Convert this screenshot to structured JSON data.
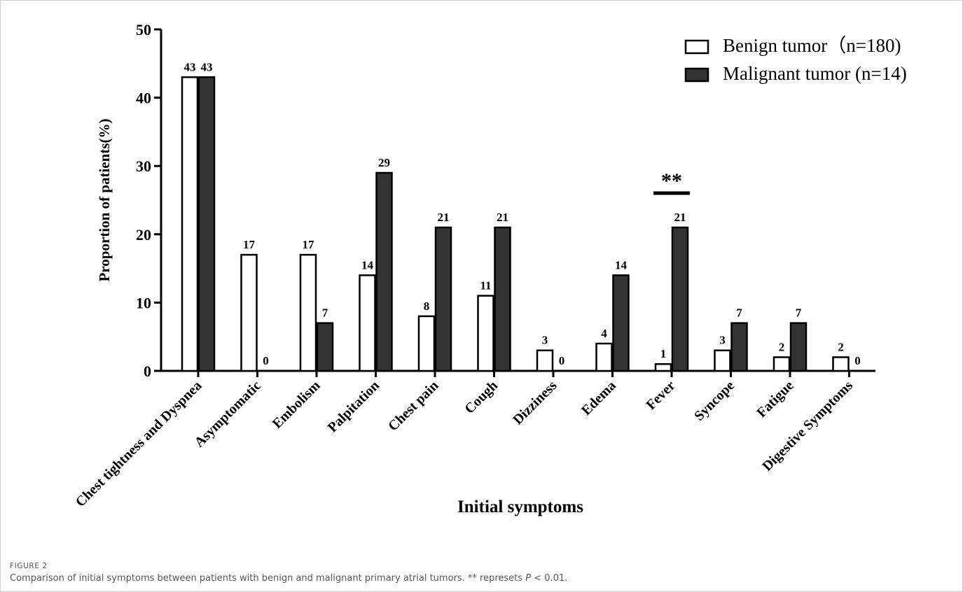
{
  "chart_data": {
    "type": "bar",
    "xlabel": "Initial symptoms",
    "ylabel": "Proportion of patients(%)",
    "ylim": [
      0,
      50
    ],
    "yticks": [
      0,
      10,
      20,
      30,
      40,
      50
    ],
    "categories": [
      "Chest tightness and Dyspnea",
      "Asymptomatic",
      "Embolism",
      "Palpitation",
      "Chest pain",
      "Cough",
      "Dizziness",
      "Edema",
      "Fever",
      "Syncope",
      "Fatigue",
      "Digestive Symptoms"
    ],
    "series": [
      {
        "name": "Benign tumor（n=180)",
        "values": [
          43,
          17,
          17,
          14,
          8,
          11,
          3,
          4,
          1,
          3,
          2,
          2
        ],
        "fill": "#ffffff"
      },
      {
        "name": "Malignant tumor (n=14)",
        "values": [
          43,
          0,
          7,
          29,
          21,
          21,
          0,
          14,
          21,
          7,
          7,
          0
        ],
        "fill": "#333333"
      }
    ],
    "legend_position": "top-right",
    "grid": false,
    "annotations": [
      {
        "category": "Fever",
        "text": "**"
      }
    ]
  },
  "caption": {
    "label": "FIGURE 2",
    "text_before": "Comparison of initial symptoms between patients with benign and malignant primary atrial tumors. ** represets ",
    "p_symbol": "P",
    "text_after": " < 0.01."
  }
}
